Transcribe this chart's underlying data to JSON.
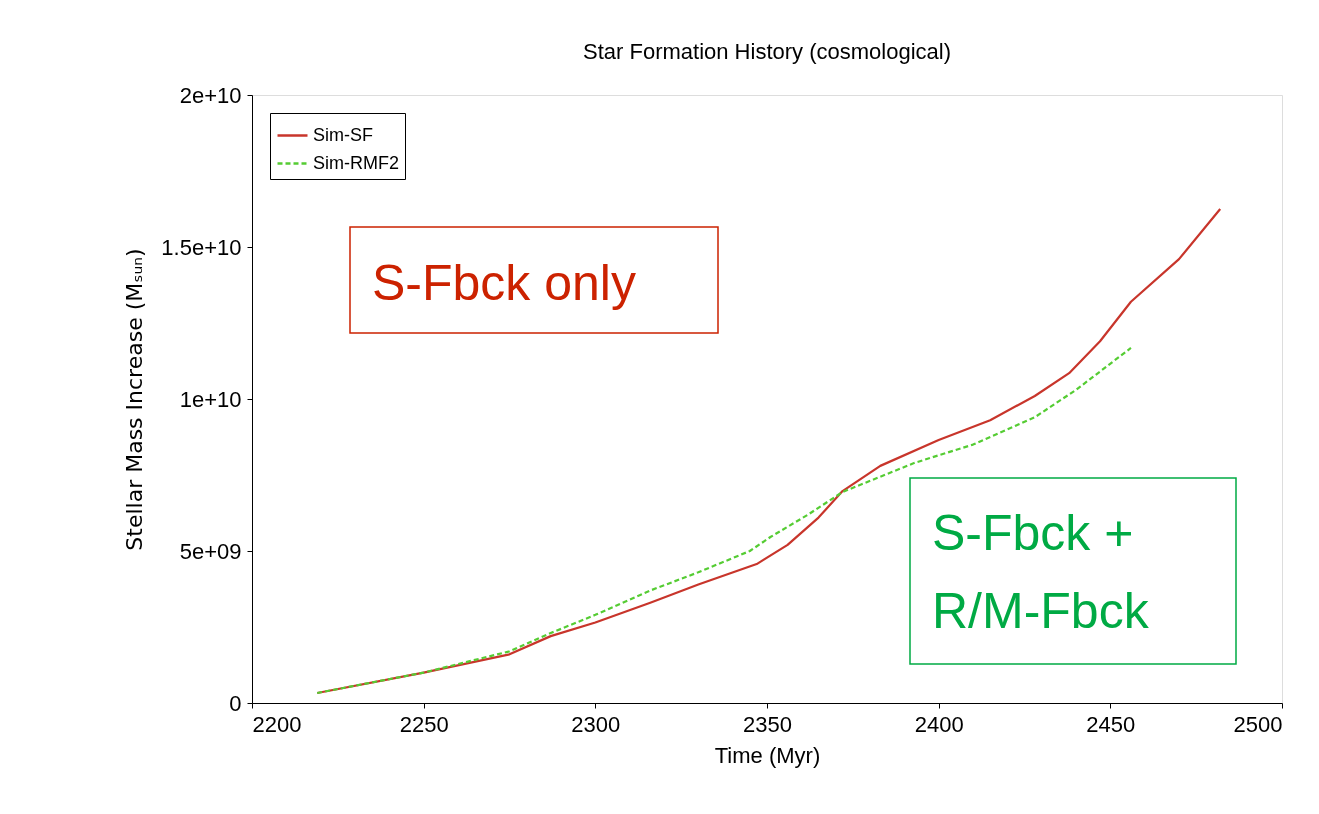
{
  "chart_data": {
    "type": "line",
    "title": "Star Formation History (cosmological)",
    "xlabel": "Time (Myr)",
    "ylabel": "Stellar Mass Increase (Mₛᵤₙ)",
    "xlim": [
      2200,
      2500
    ],
    "xticks": [
      2200,
      2250,
      2300,
      2350,
      2400,
      2450,
      2500
    ],
    "ylim": [
      0,
      20000000000
    ],
    "yticks": [
      0,
      {
        "value": 5000000000,
        "label": "5e+09"
      },
      {
        "value": 10000000000,
        "label": "1e+10"
      },
      {
        "value": 15000000000,
        "label": "1.5e+10"
      },
      {
        "value": 20000000000,
        "label": "2e+10"
      }
    ],
    "legend": "top left",
    "grid": false,
    "annotations": [
      "S-Fbck only",
      "S-Fbck +\nR/M-Fbck"
    ],
    "series": [
      {
        "name": "Sim-SF",
        "color": "#c8352b",
        "line_style": "solid",
        "x": [
          2219,
          2250,
          2275,
          2287,
          2300,
          2316,
          2330,
          2347,
          2356,
          2365,
          2372,
          2383,
          2400,
          2415,
          2428,
          2438,
          2447,
          2456,
          2470,
          2482
        ],
        "values": [
          330000000,
          1000000000,
          1600000000,
          2200000000,
          2650000000,
          3300000000,
          3900000000,
          4570000000,
          5200000000,
          6100000000,
          6970000000,
          7800000000,
          8650000000,
          9300000000,
          10100000000,
          10850000000,
          11900000000,
          13200000000,
          14600000000,
          16250000000
        ]
      },
      {
        "name": "Sim-RMF2",
        "color": "#55cc33",
        "line_style": "dashed",
        "x": [
          2219,
          2250,
          2275,
          2287,
          2300,
          2316,
          2330,
          2345,
          2351,
          2362,
          2372,
          2393,
          2410,
          2428,
          2440,
          2456
        ],
        "values": [
          330000000,
          1000000000,
          1700000000,
          2300000000,
          2900000000,
          3700000000,
          4300000000,
          5000000000,
          5460000000,
          6200000000,
          6940000000,
          7900000000,
          8500000000,
          9400000000,
          10300000000,
          11680000000
        ]
      }
    ]
  }
}
